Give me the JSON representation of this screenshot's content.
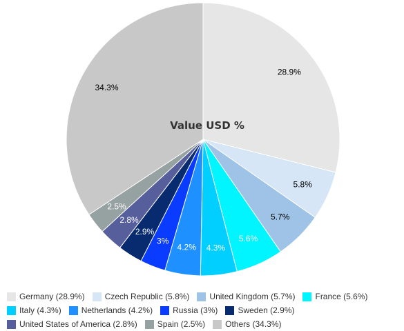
{
  "chart_data": {
    "type": "pie",
    "title": "Value USD %",
    "categories": [
      "Germany",
      "Czech Republic",
      "United Kingdom",
      "France",
      "Italy",
      "Netherlands",
      "Russia",
      "Sweden",
      "United States of America",
      "Spain",
      "Others"
    ],
    "values": [
      28.9,
      5.8,
      5.7,
      5.6,
      4.3,
      4.2,
      3,
      2.9,
      2.8,
      2.5,
      34.3
    ],
    "slice_labels": [
      "28.9%",
      "5.8%",
      "5.7%",
      "5.6%",
      "4.3%",
      "4.2%",
      "3%",
      "2.9%",
      "2.8%",
      "2.5%",
      "34.3%"
    ],
    "legend_labels": [
      "Germany (28.9%)",
      "Czech Republic (5.8%)",
      "United Kingdom (5.7%)",
      "France (5.6%)",
      "Italy (4.3%)",
      "Netherlands (4.2%)",
      "Russia (3%)",
      "Sweden (2.9%)",
      "United States of America (2.8%)",
      "Spain (2.5%)",
      "Others (34.3%)"
    ],
    "colors": [
      "#e6e6e6",
      "#d6e6f6",
      "#9ec3e6",
      "#00f5ff",
      "#00cfff",
      "#1e90ff",
      "#0a3cff",
      "#082a6e",
      "#565f9c",
      "#96a2a2",
      "#c8c8c8"
    ],
    "label_colors": [
      "#000000",
      "#000000",
      "#000000",
      "#ffffff",
      "#ffffff",
      "#ffffff",
      "#ffffff",
      "#ffffff",
      "#ffffff",
      "#ffffff",
      "#000000"
    ],
    "legend_placement": "bottom"
  }
}
